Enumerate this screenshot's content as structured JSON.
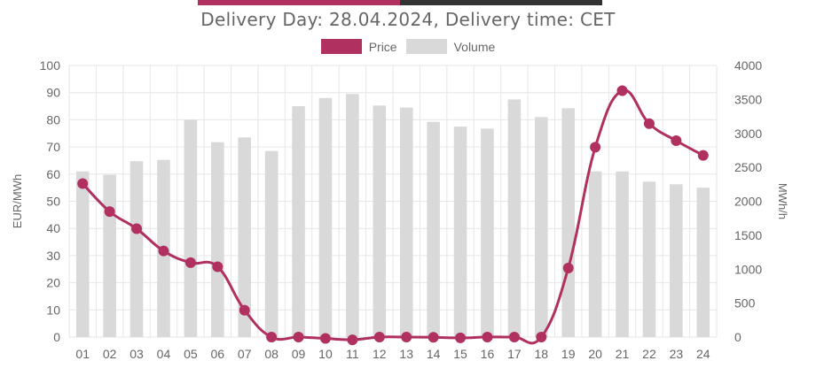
{
  "colors": {
    "price": "#b03060",
    "volume": "#d9d9d9",
    "top_bar_left": "#b03060",
    "top_bar_right": "#333333",
    "grid": "#e6e6e6",
    "text": "#666666"
  },
  "title": "Delivery Day: 28.04.2024, Delivery time: CET",
  "legend": {
    "price": "Price",
    "volume": "Volume"
  },
  "chart_data": {
    "type": "bar+line",
    "title": "Delivery Day: 28.04.2024, Delivery time: CET",
    "categories": [
      "01",
      "02",
      "03",
      "04",
      "05",
      "06",
      "07",
      "08",
      "09",
      "10",
      "11",
      "12",
      "13",
      "14",
      "15",
      "16",
      "17",
      "18",
      "19",
      "20",
      "21",
      "22",
      "23",
      "24"
    ],
    "series": [
      {
        "name": "Price",
        "type": "line",
        "axis": "left",
        "values": [
          56.5,
          46.2,
          39.9,
          31.7,
          27.4,
          25.9,
          9.9,
          0.0,
          0.0,
          -0.5,
          -1.0,
          0.0,
          0.0,
          -0.1,
          -0.3,
          0.0,
          0.0,
          0.0,
          25.4,
          69.9,
          90.7,
          78.6,
          72.3,
          66.9
        ]
      },
      {
        "name": "Volume",
        "type": "bar",
        "axis": "right",
        "values": [
          2440,
          2390,
          2590,
          2610,
          3200,
          2870,
          2940,
          2740,
          3400,
          3520,
          3580,
          3410,
          3380,
          3170,
          3100,
          3070,
          3500,
          3240,
          3370,
          2440,
          2440,
          2290,
          2250,
          2200
        ]
      }
    ],
    "ylabel": "EUR/MWh",
    "ylabel_right": "MWh/h",
    "ylim": [
      0,
      100
    ],
    "ylim_right": [
      0,
      4000
    ],
    "yticks": [
      "0",
      "10",
      "20",
      "30",
      "40",
      "50",
      "60",
      "70",
      "80",
      "90",
      "100"
    ],
    "yticks_right": [
      "0",
      "500",
      "1000",
      "1500",
      "2000",
      "2500",
      "3000",
      "3500",
      "4000"
    ],
    "grid": true,
    "legend_position": "top"
  }
}
